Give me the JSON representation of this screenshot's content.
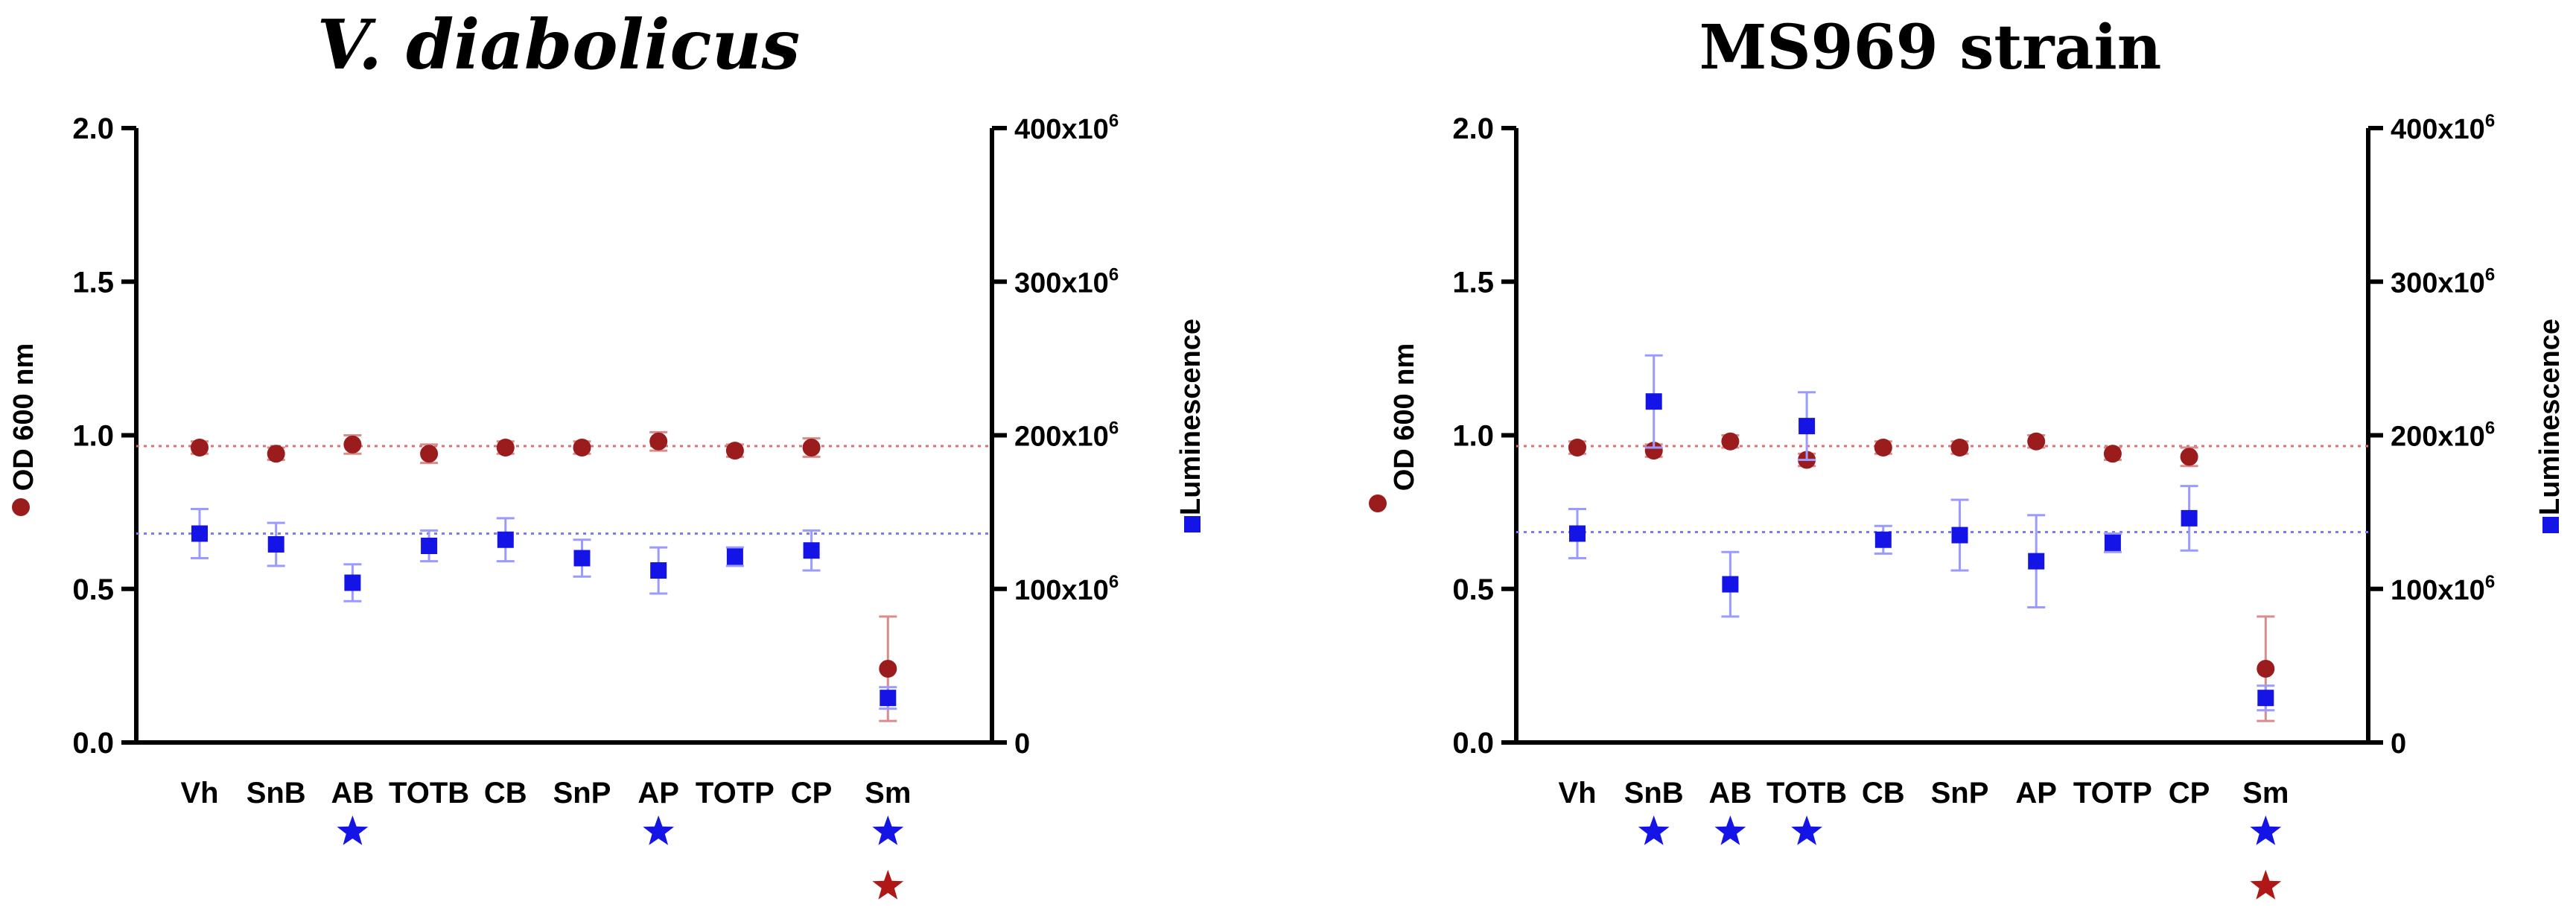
{
  "colors": {
    "od": "#9b1c1c",
    "lum": "#1414e6",
    "od_line": "#e07070",
    "lum_line": "#7a7aff",
    "od_err": "#d98c8c",
    "lum_err": "#9a9aff",
    "star_blue": "#1414e6",
    "star_red": "#b01818"
  },
  "chart_data": [
    {
      "type": "scatter",
      "title": "V. diabolicus",
      "title_style": "italic",
      "categories": [
        "Vh",
        "SnB",
        "AB",
        "TOTB",
        "CB",
        "SnP",
        "AP",
        "TOTP",
        "CP",
        "Sm"
      ],
      "ylabel": "OD 600 nm",
      "y2label": "Luminescence",
      "ylim": [
        0,
        2.0
      ],
      "yticks": [
        "0.0",
        "0.5",
        "1.0",
        "1.5",
        "2.0"
      ],
      "y2lim": [
        0,
        400000000
      ],
      "y2ticks": [
        {
          "base": "0",
          "exp": ""
        },
        {
          "base": "100x10",
          "exp": "6"
        },
        {
          "base": "200x10",
          "exp": "6"
        },
        {
          "base": "300x10",
          "exp": "6"
        },
        {
          "base": "400x10",
          "exp": "6"
        }
      ],
      "series": [
        {
          "name": "OD 600 nm",
          "axis": "left",
          "marker": "circle",
          "values": [
            0.96,
            0.94,
            0.97,
            0.94,
            0.96,
            0.96,
            0.98,
            0.95,
            0.96,
            0.24
          ],
          "errors": [
            0.02,
            0.02,
            0.03,
            0.03,
            0.02,
            0.02,
            0.03,
            0.02,
            0.03,
            0.17
          ],
          "reference": 0.965
        },
        {
          "name": "Luminescence",
          "axis": "right",
          "marker": "square",
          "values": [
            136000000,
            129000000,
            104000000,
            128000000,
            132000000,
            120000000,
            112000000,
            121000000,
            125000000,
            29000000
          ],
          "errors": [
            16000000,
            14000000,
            12000000,
            10000000,
            14000000,
            12000000,
            15000000,
            6000000,
            13000000,
            7000000
          ],
          "reference": 136000000
        }
      ],
      "significance": {
        "blue_stars": [
          "AB",
          "AP",
          "Sm"
        ],
        "red_stars": [
          "Sm"
        ]
      }
    },
    {
      "type": "scatter",
      "title": "MS969 strain",
      "title_style": "normal",
      "categories": [
        "Vh",
        "SnB",
        "AB",
        "TOTB",
        "CB",
        "SnP",
        "AP",
        "TOTP",
        "CP",
        "Sm"
      ],
      "ylabel": "OD 600 nm",
      "y2label": "Luminescence",
      "ylim": [
        0,
        2.0
      ],
      "yticks": [
        "0.0",
        "0.5",
        "1.0",
        "1.5",
        "2.0"
      ],
      "y2lim": [
        0,
        400000000
      ],
      "y2ticks": [
        {
          "base": "0",
          "exp": ""
        },
        {
          "base": "100x10",
          "exp": "6"
        },
        {
          "base": "200x10",
          "exp": "6"
        },
        {
          "base": "300x10",
          "exp": "6"
        },
        {
          "base": "400x10",
          "exp": "6"
        }
      ],
      "series": [
        {
          "name": "OD 600 nm",
          "axis": "left",
          "marker": "circle",
          "values": [
            0.96,
            0.95,
            0.98,
            0.92,
            0.96,
            0.96,
            0.98,
            0.94,
            0.93,
            0.24
          ],
          "errors": [
            0.02,
            0.02,
            0.02,
            0.02,
            0.02,
            0.02,
            0.02,
            0.02,
            0.03,
            0.17
          ],
          "reference": 0.965
        },
        {
          "name": "Luminescence",
          "axis": "right",
          "marker": "square",
          "values": [
            136000000,
            222000000,
            103000000,
            206000000,
            132000000,
            135000000,
            118000000,
            130000000,
            146000000,
            29000000
          ],
          "errors": [
            16000000,
            30000000,
            21000000,
            22000000,
            9000000,
            23000000,
            30000000,
            6000000,
            21000000,
            8000000
          ],
          "reference": 137000000
        }
      ],
      "significance": {
        "blue_stars": [
          "SnB",
          "AB",
          "TOTB",
          "Sm"
        ],
        "red_stars": [
          "Sm"
        ]
      }
    }
  ]
}
